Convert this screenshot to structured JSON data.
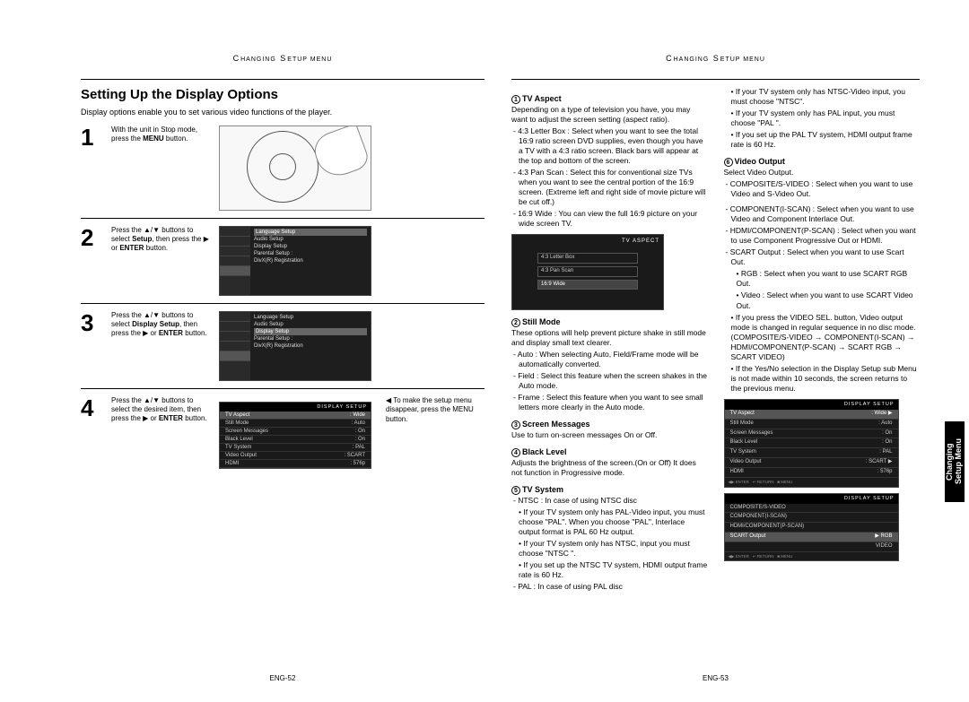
{
  "header": "CHANGING SETUP MENU",
  "left": {
    "title": "Setting Up the Display Options",
    "intro": "Display options enable you to set various video functions of the player.",
    "steps": [
      {
        "num": "1",
        "text_html": "With the unit in Stop mode, press the <b>MENU</b> button."
      },
      {
        "num": "2",
        "text_html": "Press the ▲/▼ buttons to select <b>Setup</b>, then press the ▶ or <b>ENTER</b> button."
      },
      {
        "num": "3",
        "text_html": "Press the ▲/▼ buttons to select <b>Display Setup</b>, then press the ▶ or <b>ENTER</b> button."
      },
      {
        "num": "4",
        "text_html": "Press the ▲/▼ buttons to select the desired item, then press the ▶ or <b>ENTER</b> button."
      }
    ],
    "menu2_items": [
      "Language Setup",
      "Audio Setup",
      "Display Setup",
      "Parental Setup :",
      "DivX(R) Registration"
    ],
    "menu3_items": [
      "Language Setup",
      "Audio Setup",
      "Display Setup",
      "Parental Setup :",
      "DivX(R) Registration"
    ],
    "menu4_title": "DISPLAY SETUP",
    "menu4_items": [
      [
        "TV Aspect",
        ": Wide"
      ],
      [
        "Still Mode",
        ": Auto"
      ],
      [
        "Screen Messages",
        ": On"
      ],
      [
        "Black Level",
        ": On"
      ],
      [
        "TV System",
        ": PAL"
      ],
      [
        "Video Output",
        ": SCART"
      ],
      [
        "HDMI",
        ": 576p"
      ]
    ],
    "note": "To make the setup menu disappear, press the MENU button.",
    "pagenum": "ENG-52"
  },
  "right": {
    "col1": {
      "tv_aspect": {
        "num": "1",
        "title": "TV Aspect",
        "intro": "Depending on a type of television you have, you may want to adjust the screen setting (aspect ratio).",
        "opts": [
          "- 4:3 Letter Box : Select when you want to see the total 16:9 ratio screen DVD supplies, even though you have a TV with a 4:3 ratio screen. Black bars will appear at the top and bottom of the screen.",
          "- 4:3 Pan Scan : Select this for conventional size TVs when you want to see the central portion of the 16:9 screen. (Extreme left and right side of movie picture will be cut off.)",
          "- 16:9 Wide : You can view the full 16:9 picture on your wide screen TV."
        ],
        "fig_title": "TV ASPECT",
        "fig_opts": [
          "4:3 Letter Box",
          "4:3 Pan Scan",
          "16:9 Wide"
        ]
      },
      "still": {
        "num": "2",
        "title": "Still Mode",
        "intro": "These options will help prevent picture shake in still mode and display small text clearer.",
        "opts": [
          "- Auto : When selecting Auto, Field/Frame mode will be automatically converted.",
          "- Field : Select this feature when the screen shakes in the Auto mode.",
          "- Frame : Select this feature when you want to see small letters more clearly in the Auto mode."
        ]
      },
      "screen": {
        "num": "3",
        "title": "Screen Messages",
        "text": "Use to turn on-screen messages On or Off."
      },
      "black": {
        "num": "4",
        "title": "Black Level",
        "text": "Adjusts the brightness of the screen.(On or Off) It does not function in Progressive mode."
      },
      "tvsys": {
        "num": "5",
        "title": "TV System",
        "opts": [
          "- NTSC : In case of using NTSC disc",
          "• If your TV system only has PAL-Video input, you must choose \"PAL\". When you choose \"PAL\", Interlace output format is PAL 60 Hz output.",
          "• If your TV system only has NTSC, input you must choose \"NTSC \".",
          "• If you set up the NTSC TV system, HDMI output frame rate is 60 Hz.",
          "- PAL : In case of using PAL disc"
        ]
      }
    },
    "col2": {
      "tvsys_cont": [
        "• If your TV system only has NTSC-Video input, you must choose \"NTSC\".",
        "• If your TV system only has PAL input, you must choose \"PAL \".",
        "• If you set up the PAL TV system, HDMI output frame rate is 60 Hz."
      ],
      "video": {
        "num": "6",
        "title": "Video Output",
        "intro": "Select Video Output.",
        "opts": [
          "- COMPOSITE/S-VIDEO : Select when you want to use Video and S-Video Out.",
          "- COMPONENT(I-SCAN) : Select when you want to use Video and Component Interlace Out.",
          "- HDMI/COMPONENT(P-SCAN) : Select when you want to use Component Progressive Out or HDMI.",
          "- SCART Output : Select when you want to use Scart Out.",
          "• RGB : Select when you want to use SCART RGB Out.",
          "• Video : Select when you want to use SCART Video Out.",
          "• If you press the VIDEO SEL. button, Video output mode is changed in regular sequence in no disc mode. (COMPOSITE/S-VIDEO → COMPONENT(I-SCAN) → HDMI/COMPONENT(P-SCAN) → SCART RGB → SCART VIDEO)",
          "• If the Yes/No selection in the Display Setup sub Menu is not made within 10 seconds, the screen returns to the previous menu."
        ]
      },
      "disp1_title": "DISPLAY SETUP",
      "disp1": [
        [
          "TV Aspect",
          ": Wide  ▶"
        ],
        [
          "Still Mode",
          ": Auto"
        ],
        [
          "Screen Messages",
          ": On"
        ],
        [
          "Black Level",
          ": On"
        ],
        [
          "TV System",
          ": PAL"
        ],
        [
          "Video Output",
          ": SCART  ▶"
        ],
        [
          "HDMI",
          ": 576p"
        ]
      ],
      "disp2_title": "DISPLAY SETUP",
      "disp2": [
        [
          "COMPOSITE/S-VIDEO",
          ""
        ],
        [
          "COMPONENT(I-SCAN)",
          ""
        ],
        [
          "HDMI/COMPONENT(P-SCAN)",
          ""
        ],
        [
          "SCART Output",
          "▶  RGB"
        ],
        [
          "",
          "VIDEO"
        ]
      ]
    },
    "pagenum": "ENG-53",
    "side_tab": "Changing\nSetup Menu"
  }
}
